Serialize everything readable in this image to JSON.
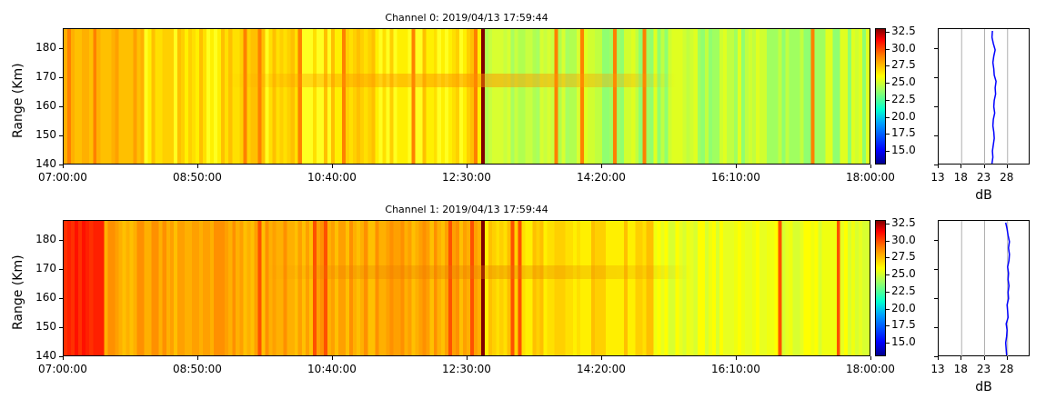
{
  "chart_data": [
    {
      "type": "heatmap",
      "title": "Channel 0: 2019/04/13 17:59:44",
      "ylabel": "Range (Km)",
      "x_ticks": [
        "07:00:00",
        "08:50:00",
        "10:40:00",
        "12:30:00",
        "14:20:00",
        "16:10:00",
        "18:00:00"
      ],
      "y_ticks": [
        "140",
        "150",
        "160",
        "170",
        "180"
      ],
      "ylim": [
        140,
        187
      ],
      "colorbar_ticks": [
        "15.0",
        "17.5",
        "20.0",
        "22.5",
        "25.0",
        "27.5",
        "30.0",
        "32.5"
      ],
      "colorbar_range": [
        13,
        33
      ],
      "profile": {
        "xlabel": "dB",
        "x_ticks": [
          "13",
          "18",
          "23",
          "28"
        ],
        "xlim": [
          13,
          33
        ],
        "line_color": "#0000ff",
        "values": [
          24.6,
          24.8,
          24.7,
          24.9,
          25.1,
          25.0,
          24.8,
          24.9,
          25.2,
          25.0,
          25.1,
          25.4,
          25.3,
          25.5,
          25.1,
          25.0,
          24.8,
          25.0,
          25.3,
          24.9,
          24.6,
          24.7
        ]
      }
    },
    {
      "type": "heatmap",
      "title": "Channel 1: 2019/04/13 17:59:44",
      "ylabel": "Range (Km)",
      "x_ticks": [
        "07:00:00",
        "08:50:00",
        "10:40:00",
        "12:30:00",
        "14:20:00",
        "16:10:00",
        "18:00:00"
      ],
      "y_ticks": [
        "140",
        "150",
        "160",
        "170",
        "180"
      ],
      "ylim": [
        140,
        187
      ],
      "colorbar_ticks": [
        "15.0",
        "17.5",
        "20.0",
        "22.5",
        "25.0",
        "27.5",
        "30.0",
        "32.5"
      ],
      "colorbar_range": [
        13,
        33
      ],
      "profile": {
        "xlabel": "dB",
        "x_ticks": [
          "13",
          "18",
          "23",
          "28"
        ],
        "xlim": [
          13,
          33
        ],
        "line_color": "#0000ff",
        "values": [
          27.8,
          27.7,
          27.6,
          27.8,
          27.9,
          27.7,
          28.1,
          28.0,
          27.9,
          28.2,
          28.1,
          28.3,
          28.1,
          28.2,
          28.0,
          28.3,
          28.4,
          28.2,
          28.4,
          28.1,
          27.9,
          27.6
        ]
      }
    }
  ]
}
